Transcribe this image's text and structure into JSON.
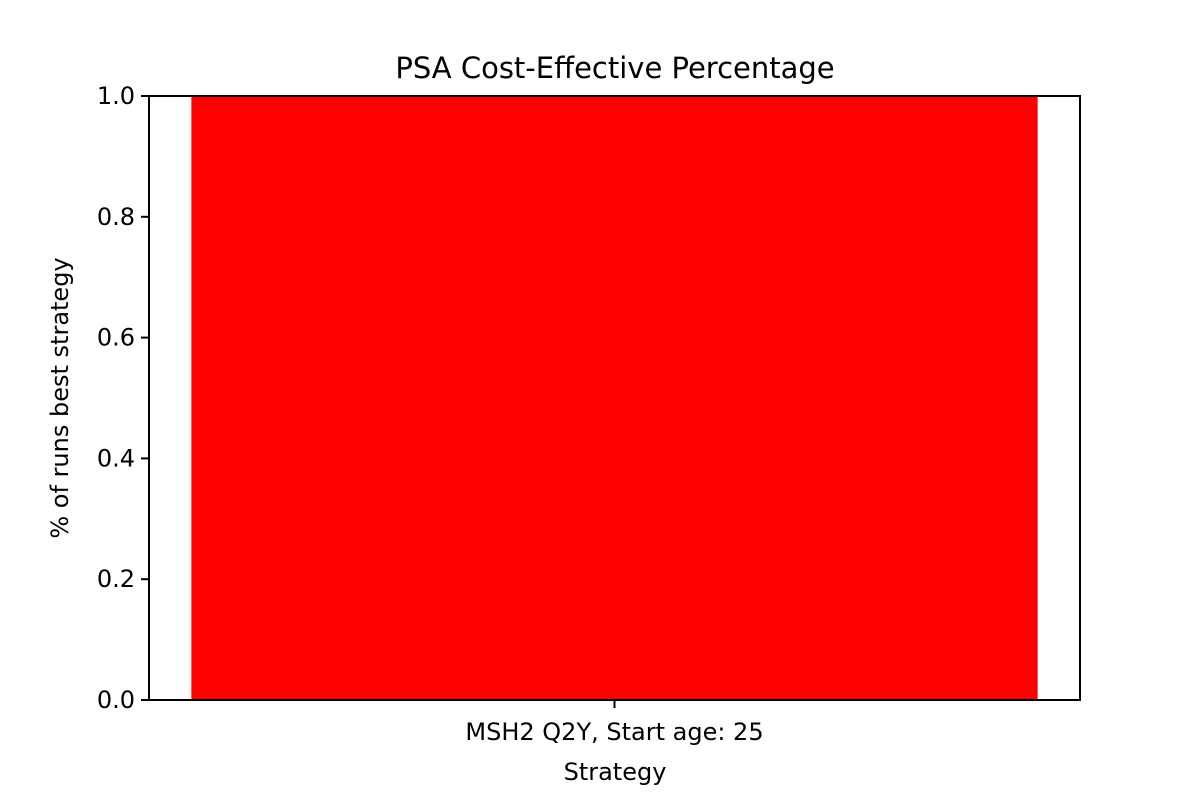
{
  "chart_data": {
    "type": "bar",
    "title": "PSA Cost-Effective Percentage",
    "xlabel": "Strategy",
    "ylabel": "% of runs best strategy",
    "categories": [
      "MSH2 Q2Y, Start age: 25"
    ],
    "values": [
      1.0
    ],
    "ylim": [
      0.0,
      1.0
    ],
    "yticks": [
      "0.0",
      "0.2",
      "0.4",
      "0.6",
      "0.8",
      "1.0"
    ],
    "grid": false,
    "bar_color": "#ff0000"
  }
}
